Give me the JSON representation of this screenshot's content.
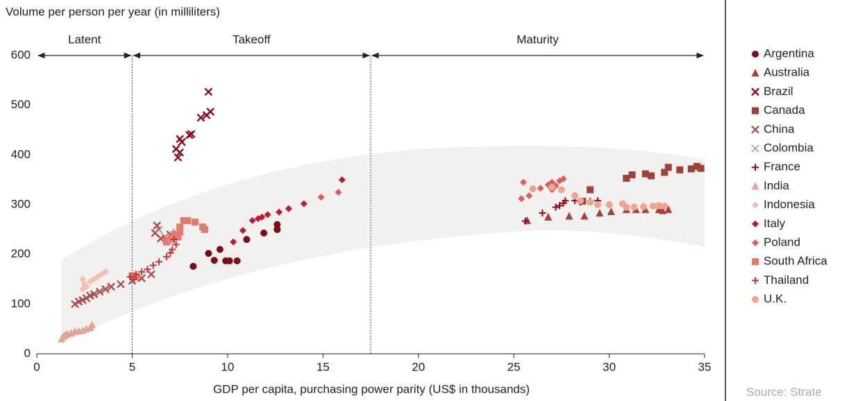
{
  "chart_data": {
    "type": "scatter",
    "ylabel": "Volume per person per year (in milliliters)",
    "xlabel": "GDP per capita, purchasing power parity (US$ in thousands)",
    "source": "Source: Strate",
    "phases": [
      "Latent",
      "Takeoff",
      "Maturity"
    ],
    "phase_boundaries": [
      5,
      17.5
    ],
    "xlim": [
      0,
      35
    ],
    "xticks": [
      0,
      5,
      10,
      15,
      20,
      25,
      30,
      35
    ],
    "ylim": [
      0,
      600
    ],
    "yticks": [
      0,
      100,
      200,
      300,
      400,
      500,
      600
    ],
    "series": [
      {
        "name": "Argentina",
        "color": "#7a0c1a",
        "marker": "circle",
        "x": [
          8.2,
          9.0,
          9.3,
          9.6,
          9.9,
          10.1,
          10.5,
          11.0,
          11.9,
          12.6,
          12.6
        ],
        "values": [
          176,
          202,
          188,
          210,
          187,
          187,
          187,
          230,
          243,
          260,
          250
        ]
      },
      {
        "name": "Australia",
        "color": "#a8413e",
        "marker": "triangle",
        "x": [
          25.7,
          26.8,
          27.9,
          28.7,
          29.5,
          30.1,
          30.9,
          31.4,
          31.9,
          32.6,
          32.8,
          33.1
        ],
        "values": [
          268,
          275,
          277,
          277,
          283,
          286,
          290,
          290,
          290,
          290,
          288,
          290
        ]
      },
      {
        "name": "Brazil",
        "color": "#8b0a1e",
        "marker": "x-bold",
        "x": [
          7.3,
          7.4,
          7.5,
          7.5,
          7.6,
          8.0,
          8.1,
          8.6,
          8.9,
          9.1,
          9.0
        ],
        "values": [
          412,
          395,
          405,
          432,
          426,
          440,
          442,
          475,
          480,
          487,
          527
        ]
      },
      {
        "name": "Canada",
        "color": "#a0403c",
        "marker": "square",
        "x": [
          28.6,
          29.0,
          30.9,
          31.2,
          31.9,
          32.2,
          32.9,
          33.1,
          33.7,
          34.3,
          34.6,
          34.8
        ],
        "values": [
          307,
          330,
          353,
          360,
          362,
          358,
          365,
          375,
          370,
          372,
          377,
          373
        ]
      },
      {
        "name": "China",
        "color": "#a85050",
        "marker": "x-bold",
        "x": [
          2.0,
          2.2,
          2.4,
          2.6,
          2.8,
          3.0,
          3.3,
          3.6,
          3.9,
          4.4,
          5.0,
          5.5,
          6.0,
          6.2,
          6.3,
          6.5,
          6.8,
          7.0
        ],
        "values": [
          100,
          105,
          108,
          112,
          117,
          120,
          125,
          130,
          135,
          140,
          147,
          152,
          160,
          243,
          258,
          232,
          230,
          240
        ]
      },
      {
        "name": "Colombia",
        "color": "#c06060",
        "marker": "x-thin",
        "x": [
          6.4,
          6.7,
          7.0,
          7.3
        ],
        "values": [
          250,
          235,
          225,
          245
        ]
      },
      {
        "name": "France",
        "color": "#8b0a1e",
        "marker": "plus",
        "x": [
          25.6,
          26.5,
          27.2,
          27.4,
          27.6,
          27.7,
          28.2,
          28.5,
          29.0,
          29.4
        ],
        "values": [
          267,
          283,
          295,
          298,
          303,
          308,
          308,
          305,
          307,
          308
        ]
      },
      {
        "name": "India",
        "color": "#e0a59a",
        "marker": "triangle",
        "x": [
          1.3,
          1.4,
          1.5,
          1.6,
          1.8,
          2.0,
          2.2,
          2.4,
          2.6,
          2.8,
          2.9
        ],
        "values": [
          30,
          35,
          38,
          40,
          42,
          45,
          46,
          47,
          50,
          53,
          58
        ]
      },
      {
        "name": "Indonesia",
        "color": "#f0c0b5",
        "marker": "diamond",
        "x": [
          2.4,
          2.5,
          2.6,
          2.8,
          3.0,
          3.2,
          3.4,
          3.6,
          2.4
        ],
        "values": [
          130,
          140,
          135,
          145,
          150,
          155,
          160,
          165,
          150
        ]
      },
      {
        "name": "Italy",
        "color": "#b81c32",
        "marker": "diamond",
        "x": [
          10.3,
          10.8,
          11.3,
          11.6,
          11.8,
          12.1,
          12.7,
          13.2,
          14.0,
          16.0
        ],
        "values": [
          225,
          248,
          268,
          272,
          275,
          280,
          285,
          292,
          302,
          350
        ]
      },
      {
        "name": "Poland",
        "color": "#d9605a",
        "marker": "diamond",
        "x": [
          14.9,
          15.8,
          25.4,
          25.5,
          25.8,
          26.4,
          26.8,
          27.0,
          27.0,
          27.2,
          27.4,
          27.6
        ],
        "values": [
          315,
          325,
          312,
          345,
          318,
          333,
          340,
          345,
          330,
          338,
          348,
          352
        ]
      },
      {
        "name": "South Africa",
        "color": "#e07b70",
        "marker": "square",
        "x": [
          5.0,
          5.2,
          6.8,
          7.0,
          7.2,
          7.5,
          7.7,
          7.9,
          8.3,
          8.7,
          8.8,
          7.4,
          7.5
        ],
        "values": [
          157,
          155,
          225,
          232,
          240,
          255,
          268,
          268,
          265,
          255,
          250,
          235,
          245
        ]
      },
      {
        "name": "Thailand",
        "color": "#c8303a",
        "marker": "plus",
        "x": [
          4.9,
          5.2,
          5.5,
          5.8,
          6.1,
          6.4,
          6.8,
          7.0,
          7.1,
          7.3,
          5.1,
          7.2
        ],
        "values": [
          155,
          160,
          165,
          170,
          178,
          185,
          195,
          203,
          210,
          220,
          150,
          230
        ]
      },
      {
        "name": "U.K.",
        "color": "#eba592",
        "marker": "circle",
        "x": [
          26.0,
          27.0,
          27.5,
          28.2,
          28.5,
          29.0,
          29.4,
          30.0,
          30.7,
          30.9,
          31.3,
          31.8,
          32.3,
          32.6,
          32.9
        ],
        "values": [
          332,
          335,
          330,
          318,
          308,
          305,
          300,
          300,
          302,
          295,
          295,
          296,
          297,
          298,
          297
        ]
      }
    ]
  }
}
